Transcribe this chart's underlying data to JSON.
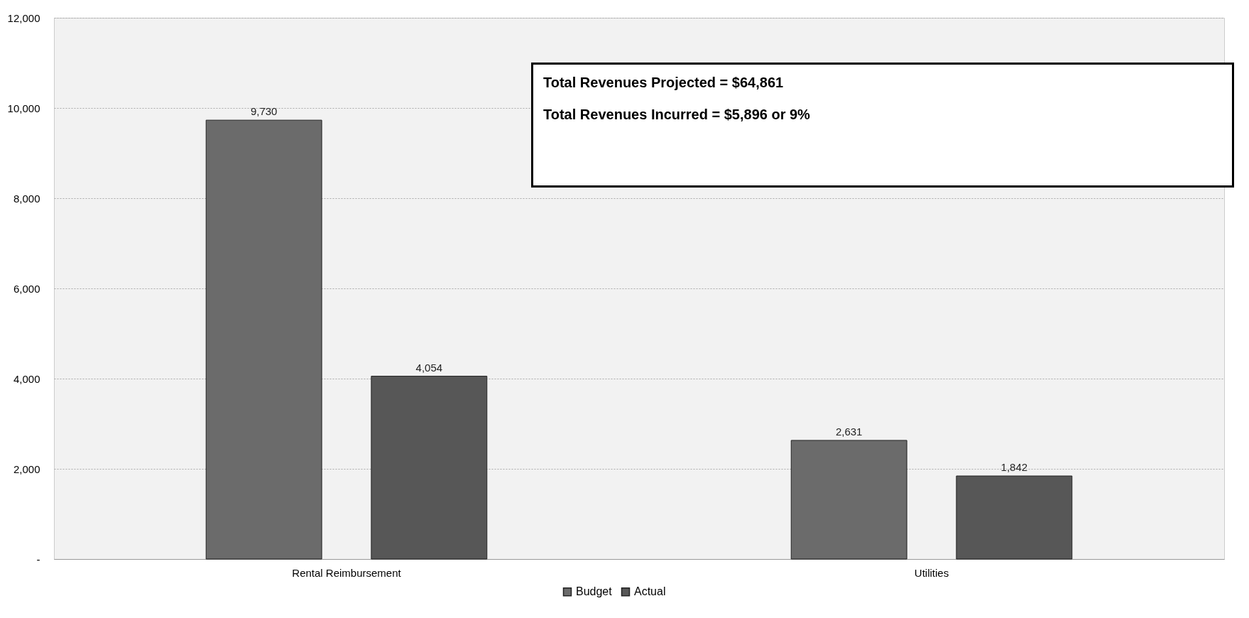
{
  "chart_data": {
    "type": "bar",
    "categories": [
      "Rental Reimbursement",
      "Utilities"
    ],
    "series": [
      {
        "name": "Budget",
        "color": "#6b6b6b",
        "values": [
          9730,
          2631
        ],
        "value_labels": [
          "9,730",
          "2,631"
        ]
      },
      {
        "name": "Actual",
        "color": "#575757",
        "values": [
          4054,
          1842
        ],
        "value_labels": [
          "4,054",
          "1,842"
        ]
      }
    ],
    "ylim": [
      0,
      12000
    ],
    "yticks": [
      {
        "value": 0,
        "label": "-"
      },
      {
        "value": 2000,
        "label": "2,000"
      },
      {
        "value": 4000,
        "label": "4,000"
      },
      {
        "value": 6000,
        "label": "6,000"
      },
      {
        "value": 8000,
        "label": "8,000"
      },
      {
        "value": 10000,
        "label": "10,000"
      },
      {
        "value": 12000,
        "label": "12,000"
      }
    ],
    "grid": "y",
    "legend": "bottom",
    "annotations": [
      "Total Revenues Projected = $64,861",
      "Total Revenues Incurred = $5,896 or 9%"
    ]
  }
}
